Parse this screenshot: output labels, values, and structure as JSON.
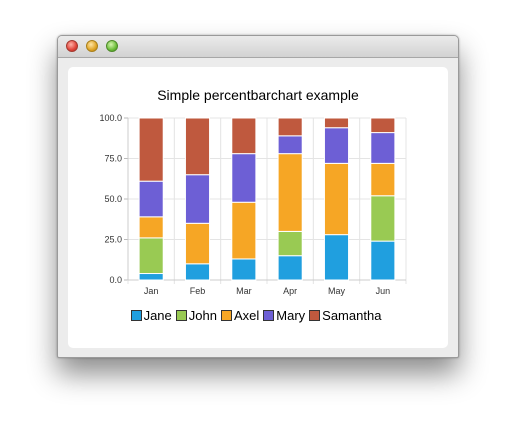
{
  "window": {
    "title": ""
  },
  "chart_data": {
    "type": "bar",
    "stacked": "percent",
    "title": "Simple percentbarchart example",
    "categories": [
      "Jan",
      "Feb",
      "Mar",
      "Apr",
      "May",
      "Jun"
    ],
    "series": [
      {
        "name": "Jane",
        "color": "#209fdf",
        "values": [
          4,
          10,
          13,
          15,
          28,
          24
        ]
      },
      {
        "name": "John",
        "color": "#99ca53",
        "values": [
          22,
          0,
          0,
          15,
          0,
          28
        ]
      },
      {
        "name": "Axel",
        "color": "#f6a625",
        "values": [
          13,
          25,
          35,
          48,
          44,
          20
        ]
      },
      {
        "name": "Mary",
        "color": "#6d5fd5",
        "values": [
          22,
          30,
          30,
          11,
          22,
          19
        ]
      },
      {
        "name": "Samantha",
        "color": "#bf593e",
        "values": [
          39,
          35,
          22,
          11,
          6,
          9
        ]
      }
    ],
    "yticks": [
      "0.0",
      "25.0",
      "50.0",
      "75.0",
      "100.0"
    ],
    "ylim": [
      0,
      100
    ],
    "grid": true,
    "legend_position": "bottom"
  }
}
